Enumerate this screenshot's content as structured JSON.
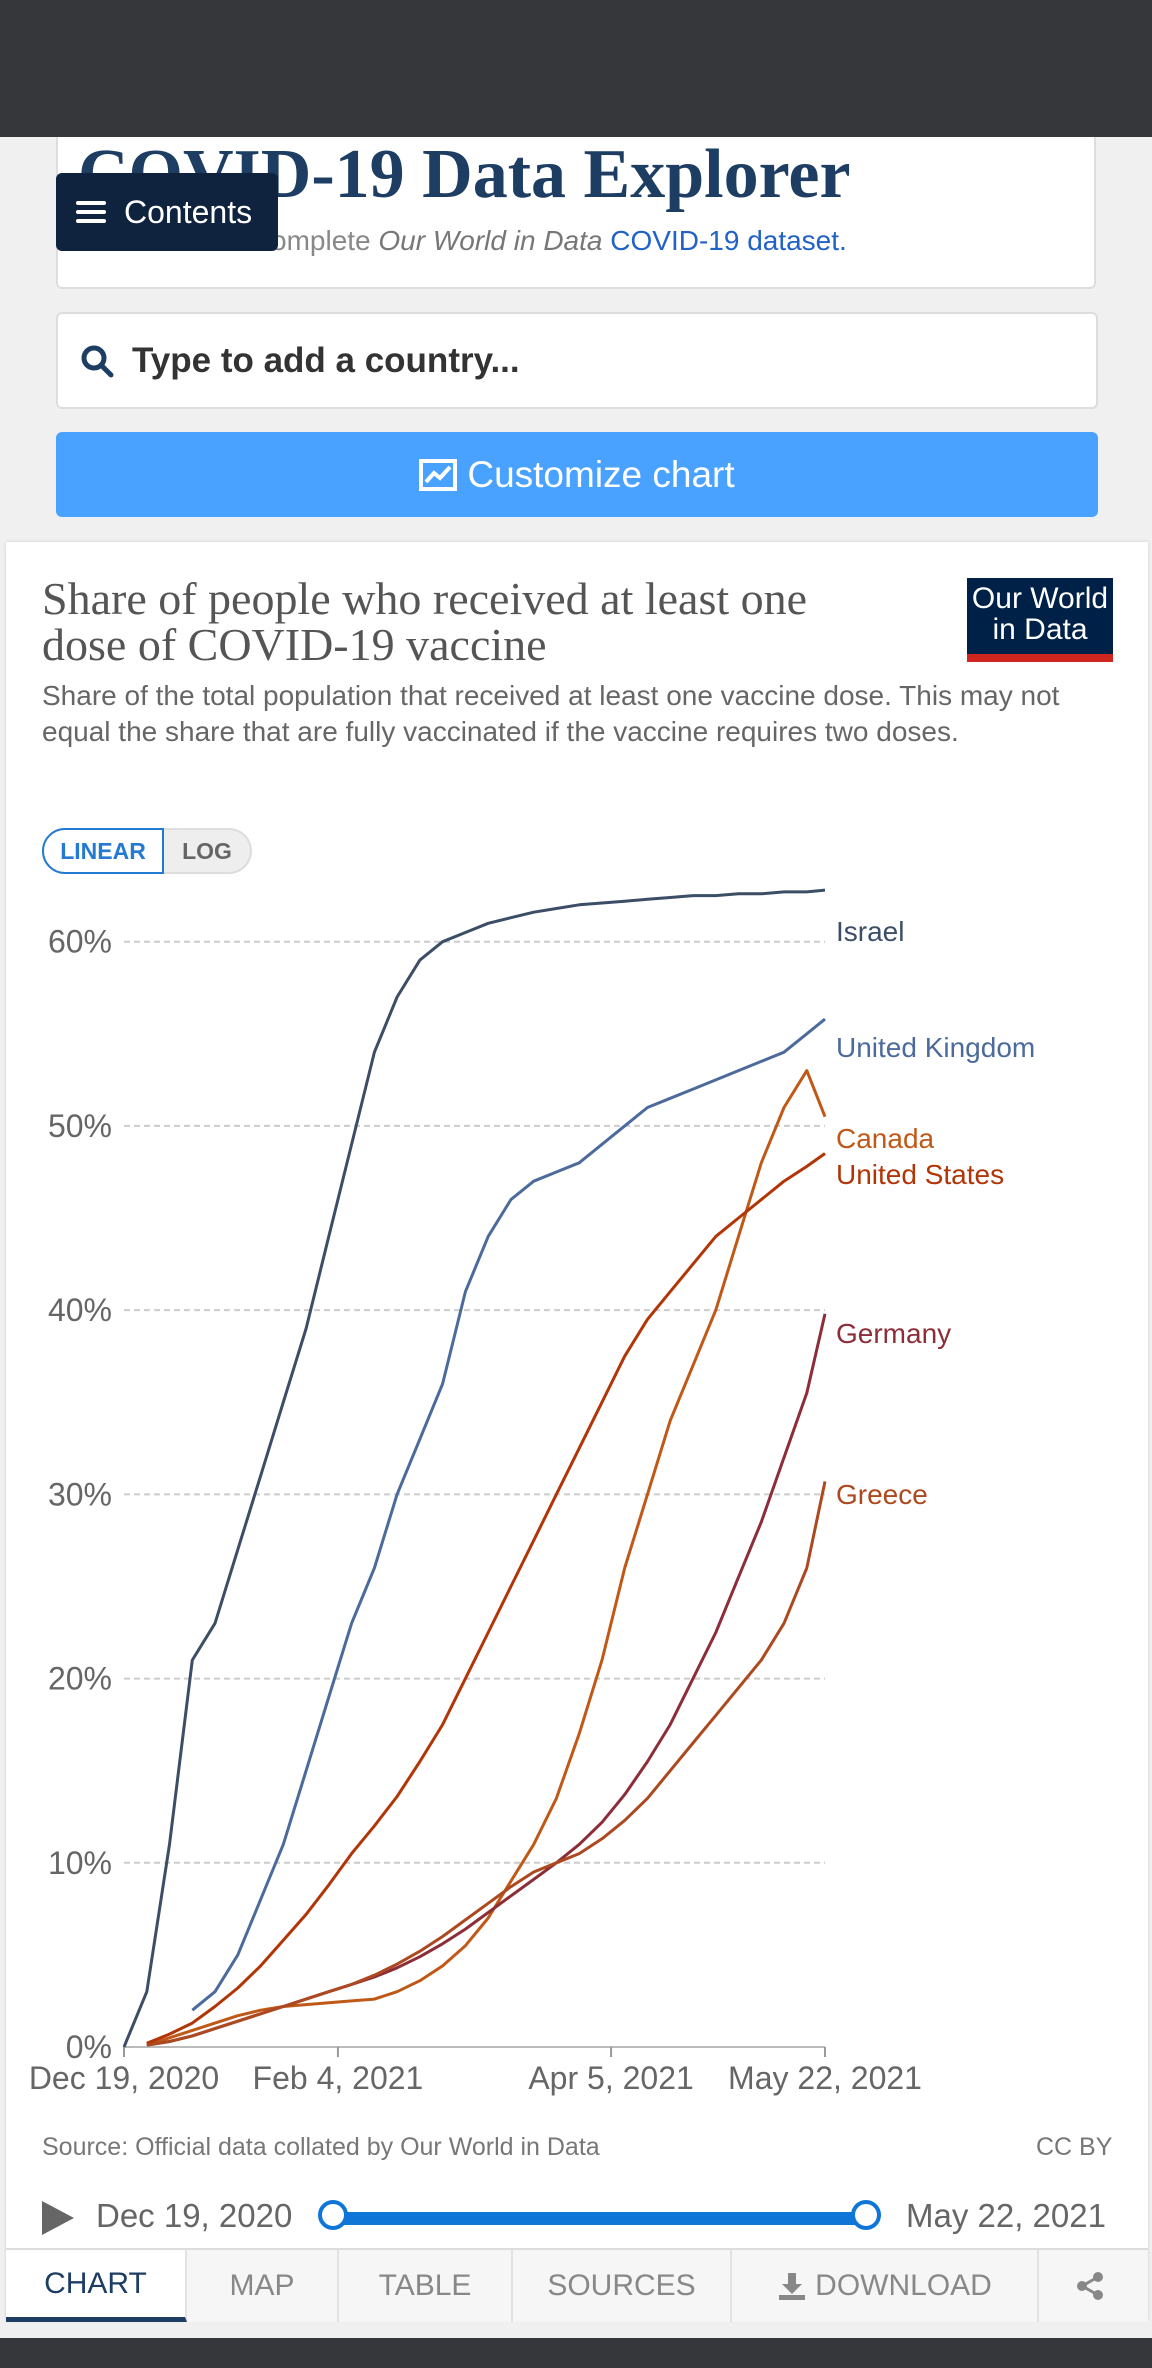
{
  "page": {
    "title": "COVID-19 Data Explorer",
    "subtitle_prefix": "Download the complete ",
    "subtitle_italic": "Our World in Data",
    "subtitle_link": "COVID-19 dataset."
  },
  "contents_button": "Contents",
  "search": {
    "placeholder": "Type to add a country..."
  },
  "customize_button": "Customize chart",
  "logo": {
    "line1": "Our World",
    "line2": "in Data"
  },
  "scale_toggle": {
    "linear": "LINEAR",
    "log": "LOG",
    "active": "LINEAR"
  },
  "footer": {
    "source": "Source: Official data collated by Our World in Data",
    "license": "CC BY"
  },
  "timeline": {
    "start": "Dec 19, 2020",
    "end": "May 22, 2021"
  },
  "tabs": [
    "CHART",
    "MAP",
    "TABLE",
    "SOURCES",
    "DOWNLOAD"
  ],
  "chart_data": {
    "type": "line",
    "title": "Share of people who received at least one dose of COVID-19 vaccine",
    "subtitle": "Share of the total population that received at least one vaccine dose. This may not equal the share that are fully vaccinated if the vaccine requires two doses.",
    "xlabel": "",
    "ylabel": "",
    "ylim": [
      0,
      64
    ],
    "x_days_range": [
      0,
      154
    ],
    "y_ticks": [
      0,
      10,
      20,
      30,
      40,
      50,
      60
    ],
    "y_tick_labels": [
      "0%",
      "10%",
      "20%",
      "30%",
      "40%",
      "50%",
      "60%"
    ],
    "x_ticks": [
      0,
      47,
      107,
      154
    ],
    "x_tick_labels": [
      "Dec 19, 2020",
      "Feb 4, 2021",
      "Apr 5, 2021",
      "May 22, 2021"
    ],
    "grid": true,
    "series": [
      {
        "name": "Israel",
        "color": "#3c4e66",
        "x": [
          0,
          5,
          10,
          15,
          20,
          25,
          30,
          35,
          40,
          45,
          50,
          55,
          60,
          65,
          70,
          75,
          80,
          85,
          90,
          95,
          100,
          105,
          110,
          115,
          120,
          125,
          130,
          135,
          140,
          145,
          150,
          154
        ],
        "y": [
          0,
          3,
          11,
          21,
          23,
          27,
          31,
          35,
          39,
          44,
          49,
          54,
          57,
          59,
          60,
          60.5,
          61,
          61.3,
          61.6,
          61.8,
          62,
          62.1,
          62.2,
          62.3,
          62.4,
          62.5,
          62.5,
          62.6,
          62.6,
          62.7,
          62.7,
          62.8
        ]
      },
      {
        "name": "United Kingdom",
        "color": "#4c6a9c",
        "x": [
          15,
          20,
          25,
          30,
          35,
          40,
          45,
          50,
          55,
          60,
          65,
          70,
          75,
          80,
          85,
          90,
          95,
          100,
          105,
          110,
          115,
          120,
          125,
          130,
          135,
          140,
          145,
          150,
          154
        ],
        "y": [
          2,
          3,
          5,
          8,
          11,
          15,
          19,
          23,
          26,
          30,
          33,
          36,
          41,
          44,
          46,
          47,
          47.5,
          48,
          49,
          50,
          51,
          51.5,
          52,
          52.5,
          53,
          53.5,
          54,
          55,
          55.8
        ]
      },
      {
        "name": "Canada",
        "color": "#c05917",
        "x": [
          5,
          10,
          15,
          20,
          25,
          30,
          35,
          40,
          45,
          50,
          55,
          60,
          65,
          70,
          75,
          80,
          85,
          90,
          95,
          100,
          105,
          110,
          115,
          120,
          125,
          130,
          135,
          140,
          145,
          150,
          154
        ],
        "y": [
          0.1,
          0.5,
          0.9,
          1.3,
          1.7,
          2,
          2.2,
          2.3,
          2.4,
          2.5,
          2.6,
          3,
          3.6,
          4.4,
          5.5,
          7,
          9,
          11,
          13.5,
          17,
          21,
          26,
          30,
          34,
          37,
          40,
          44,
          48,
          51,
          53,
          50.5
        ]
      },
      {
        "name": "United States",
        "color": "#b13507",
        "x": [
          5,
          10,
          15,
          20,
          25,
          30,
          35,
          40,
          45,
          50,
          55,
          60,
          65,
          70,
          75,
          80,
          85,
          90,
          95,
          100,
          105,
          110,
          115,
          120,
          125,
          130,
          135,
          140,
          145,
          150,
          154
        ],
        "y": [
          0.2,
          0.7,
          1.3,
          2.2,
          3.2,
          4.4,
          5.8,
          7.2,
          8.8,
          10.5,
          12,
          13.6,
          15.5,
          17.5,
          20,
          22.5,
          25,
          27.5,
          30,
          32.5,
          35,
          37.5,
          39.5,
          41,
          42.5,
          44,
          45,
          46,
          47,
          47.8,
          48.5
        ]
      },
      {
        "name": "Germany",
        "color": "#8c2d38",
        "x": [
          5,
          10,
          15,
          20,
          25,
          30,
          35,
          40,
          45,
          50,
          55,
          60,
          65,
          70,
          75,
          80,
          85,
          90,
          95,
          100,
          105,
          110,
          115,
          120,
          125,
          130,
          135,
          140,
          145,
          150,
          154
        ],
        "y": [
          0.1,
          0.3,
          0.6,
          1,
          1.4,
          1.8,
          2.2,
          2.6,
          3,
          3.4,
          3.8,
          4.3,
          4.9,
          5.6,
          6.4,
          7.3,
          8.2,
          9.1,
          10,
          11,
          12.2,
          13.7,
          15.5,
          17.5,
          20,
          22.5,
          25.5,
          28.5,
          32,
          35.5,
          39.8
        ]
      },
      {
        "name": "Greece",
        "color": "#ad4920",
        "x": [
          5,
          10,
          15,
          20,
          25,
          30,
          35,
          40,
          45,
          50,
          55,
          60,
          65,
          70,
          75,
          80,
          85,
          90,
          95,
          100,
          105,
          110,
          115,
          120,
          125,
          130,
          135,
          140,
          145,
          150,
          154
        ],
        "y": [
          0.1,
          0.3,
          0.6,
          1,
          1.4,
          1.8,
          2.2,
          2.6,
          3,
          3.4,
          3.9,
          4.5,
          5.2,
          6,
          6.9,
          7.8,
          8.7,
          9.5,
          10,
          10.5,
          11.3,
          12.3,
          13.5,
          15,
          16.5,
          18,
          19.5,
          21,
          23,
          26,
          30.7
        ]
      }
    ]
  }
}
